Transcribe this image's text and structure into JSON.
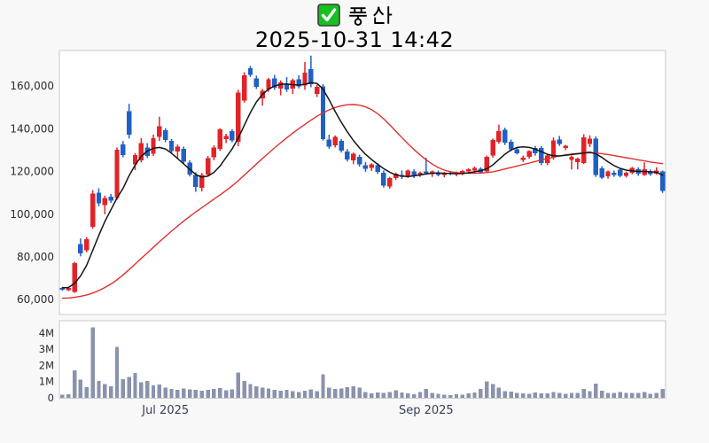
{
  "header": {
    "stock_name": "풍산",
    "checkbox_checked": true,
    "datetime": "2025-10-31 14:42"
  },
  "colors": {
    "up_candle": "#e12328",
    "down_candle": "#2060c4",
    "ma_short": "#151515",
    "ma_long": "#e03030",
    "volume_bar": "#8a92ad",
    "frame": "#cacaca",
    "panel_bg": "#ffffff",
    "background": "#f8f8f9",
    "axis_text": "#2b2b31",
    "xaxis_text": "#3a4156",
    "checkbox_green": "#16c11f",
    "checkbox_border": "#3c3c3c",
    "check_mark": "#ffffff"
  },
  "chart_data": {
    "type": "candlestick",
    "title": "풍산",
    "subtitle": "2025-10-31 14:42",
    "legend_position": "none",
    "grid": false,
    "price_axis": {
      "min": 60000,
      "max": 176600,
      "tick_values": [
        60000,
        80000,
        100000,
        120000,
        140000,
        160000
      ],
      "tick_labels": [
        "60,000",
        "80,000",
        "100,000",
        "120,000",
        "140,000",
        "160,000"
      ]
    },
    "volume_axis": {
      "min": 0,
      "max": 4800000,
      "tick_values": [
        0,
        1000000,
        2000000,
        3000000,
        4000000
      ],
      "tick_labels": [
        "0",
        "1M",
        "2M",
        "3M",
        "4M"
      ]
    },
    "x_axis": {
      "tick_indices": [
        17,
        60
      ],
      "tick_labels": [
        "Jul 2025",
        "Sep 2025"
      ]
    },
    "series": {
      "open": [
        65300,
        64400,
        63600,
        86000,
        83100,
        94100,
        110100,
        104100,
        108200,
        107600,
        132600,
        148200,
        123200,
        125200,
        131200,
        128200,
        136200,
        139200,
        134200,
        129200,
        130600,
        124200,
        118200,
        112200,
        118600,
        126600,
        130600,
        135200,
        138800,
        133800,
        153200,
        168400,
        163600,
        154200,
        158400,
        163600,
        158800,
        160800,
        158800,
        163200,
        160200,
        167800,
        156200,
        159800,
        134800,
        132200,
        134200,
        129200,
        125200,
        126800,
        122800,
        121600,
        122800,
        119400,
        112900,
        116900,
        118400,
        117900,
        119900,
        118400,
        119900,
        118900,
        119400,
        118200,
        119400,
        118700,
        119200,
        119900,
        120400,
        121200,
        119900,
        127400,
        133900,
        139400,
        133900,
        130400,
        125400,
        126900,
        130900,
        130900,
        123900,
        126400,
        134900,
        130900,
        125400,
        124400,
        123900,
        132900,
        135400,
        121400,
        117600,
        119400,
        120700,
        117900,
        119400,
        120900,
        118400,
        119900,
        118900,
        119900
      ],
      "high": [
        65900,
        66000,
        77600,
        88600,
        89200,
        111200,
        112100,
        108600,
        109400,
        131200,
        134200,
        151600,
        128600,
        135600,
        133200,
        137200,
        145600,
        140200,
        135200,
        132600,
        131600,
        125200,
        119600,
        119200,
        127200,
        132200,
        140200,
        137600,
        139800,
        158200,
        166400,
        169400,
        164800,
        158600,
        163800,
        165200,
        162600,
        164200,
        163400,
        165000,
        171200,
        174200,
        160600,
        160800,
        137200,
        136800,
        135200,
        130400,
        128800,
        127800,
        124400,
        123800,
        123800,
        120400,
        117400,
        119400,
        120400,
        120900,
        120900,
        119900,
        126400,
        120400,
        120400,
        119700,
        120200,
        119900,
        120700,
        121400,
        122200,
        121900,
        127400,
        135400,
        141900,
        140400,
        134900,
        131400,
        127400,
        129900,
        131900,
        131900,
        127900,
        135900,
        136600,
        132400,
        127400,
        126400,
        137400,
        136900,
        136400,
        122400,
        120400,
        120400,
        121400,
        119900,
        122100,
        121900,
        124200,
        120900,
        121900,
        120400
      ],
      "low": [
        64100,
        63900,
        63100,
        80200,
        82100,
        93100,
        103600,
        99900,
        105200,
        106600,
        126600,
        135400,
        120600,
        124200,
        126200,
        127200,
        134200,
        133600,
        128400,
        126200,
        123600,
        117600,
        110400,
        110600,
        117600,
        125200,
        129600,
        133200,
        133600,
        131800,
        152200,
        164200,
        158600,
        150800,
        157200,
        158200,
        155600,
        157200,
        156200,
        158800,
        158200,
        159400,
        154800,
        134400,
        130600,
        131200,
        128800,
        124600,
        123400,
        122200,
        119800,
        120200,
        118800,
        112400,
        111900,
        115900,
        116400,
        116900,
        116900,
        117400,
        118400,
        117400,
        117700,
        117200,
        118200,
        117700,
        118200,
        118900,
        119400,
        118900,
        119400,
        126400,
        132900,
        132400,
        129400,
        127900,
        124400,
        125900,
        127400,
        122900,
        122900,
        125400,
        131900,
        129900,
        120900,
        120900,
        123400,
        131400,
        117400,
        116400,
        116600,
        117400,
        117200,
        117100,
        118600,
        117900,
        117900,
        117900,
        118400,
        109900
      ],
      "close": [
        64600,
        65400,
        77100,
        81600,
        88300,
        109600,
        105100,
        107600,
        106200,
        130200,
        127600,
        137200,
        127600,
        133200,
        127200,
        135600,
        141200,
        134600,
        129600,
        131600,
        124600,
        118600,
        112600,
        118200,
        126200,
        131200,
        139600,
        136600,
        134400,
        156800,
        164900,
        165200,
        159600,
        157800,
        163200,
        159200,
        161600,
        158400,
        162600,
        159800,
        166200,
        160800,
        159600,
        135200,
        131600,
        136200,
        129800,
        125600,
        128200,
        123200,
        121200,
        123200,
        119800,
        113400,
        116900,
        118900,
        117400,
        120400,
        117900,
        119400,
        119200,
        119900,
        118400,
        119200,
        118900,
        119400,
        120200,
        120900,
        121700,
        119600,
        126900,
        134700,
        138900,
        133400,
        130400,
        128400,
        126400,
        129400,
        128400,
        123900,
        127400,
        134400,
        132900,
        131900,
        126900,
        125900,
        135900,
        135400,
        118400,
        117100,
        119900,
        118200,
        117900,
        119400,
        121600,
        118900,
        120900,
        118700,
        120400,
        110900
      ],
      "volume": [
        200000,
        220000,
        1700000,
        1120000,
        660000,
        4350000,
        1050000,
        840000,
        700000,
        3150000,
        1150000,
        1280000,
        1520000,
        950000,
        1050000,
        760000,
        820000,
        620000,
        550000,
        500000,
        580000,
        520000,
        480000,
        440000,
        500000,
        560000,
        600000,
        460000,
        520000,
        1550000,
        1050000,
        850000,
        700000,
        620000,
        580000,
        500000,
        440000,
        480000,
        420000,
        360000,
        450000,
        520000,
        400000,
        1450000,
        620000,
        550000,
        580000,
        660000,
        700000,
        640000,
        360000,
        280000,
        320000,
        300000,
        360000,
        460000,
        320000,
        280000,
        220000,
        360000,
        560000,
        300000,
        240000,
        200000,
        160000,
        220000,
        180000,
        260000,
        320000,
        550000,
        1000000,
        850000,
        620000,
        420000,
        380000,
        300000,
        280000,
        250000,
        320000,
        280000,
        260000,
        350000,
        300000,
        250000,
        300000,
        300000,
        550000,
        400000,
        880000,
        450000,
        300000,
        300000,
        350000,
        300000,
        300000,
        300000,
        350000,
        250000,
        300000,
        550000
      ],
      "ma_short": [
        65500,
        65600,
        67500,
        71000,
        76000,
        83000,
        90000,
        96500,
        102000,
        107500,
        112000,
        118000,
        123000,
        127000,
        129500,
        130800,
        131200,
        130500,
        128500,
        126000,
        123500,
        121000,
        118500,
        117300,
        117800,
        119500,
        122500,
        126500,
        130500,
        135500,
        141500,
        147500,
        152500,
        156000,
        158500,
        160000,
        160700,
        160900,
        160600,
        160400,
        160800,
        161500,
        161200,
        158500,
        153500,
        148000,
        143000,
        138500,
        134500,
        131000,
        128000,
        125500,
        123300,
        121300,
        119600,
        118400,
        117700,
        117600,
        117900,
        118300,
        118800,
        119100,
        119200,
        119100,
        119000,
        118900,
        119000,
        119300,
        119800,
        120300,
        121200,
        123000,
        125500,
        128000,
        130000,
        131200,
        131500,
        131200,
        130400,
        129200,
        128000,
        127300,
        127200,
        127500,
        127900,
        128200,
        128600,
        129000,
        128200,
        126500,
        124500,
        122700,
        121400,
        120600,
        120200,
        120000,
        119900,
        119800,
        119600,
        118200
      ],
      "ma_long": [
        60600,
        60700,
        61000,
        61500,
        62100,
        63000,
        64200,
        65600,
        67200,
        69200,
        71500,
        74000,
        76600,
        79200,
        81800,
        84400,
        87000,
        89500,
        92000,
        94400,
        96700,
        98900,
        101000,
        103000,
        105000,
        107000,
        109000,
        111000,
        113200,
        115600,
        118200,
        120800,
        123400,
        126000,
        128500,
        131000,
        133400,
        135700,
        137900,
        140000,
        142000,
        144000,
        145800,
        147400,
        148800,
        149900,
        150700,
        151200,
        151300,
        151000,
        150200,
        148900,
        147000,
        144600,
        141800,
        138800,
        135800,
        132900,
        130200,
        127700,
        125400,
        123400,
        121800,
        120600,
        119800,
        119400,
        119200,
        119100,
        119100,
        119200,
        119400,
        119800,
        120400,
        121100,
        121800,
        122500,
        123200,
        123900,
        124600,
        125300,
        126000,
        126600,
        127200,
        127700,
        128100,
        128400,
        128600,
        128700,
        128600,
        128300,
        127900,
        127400,
        126900,
        126400,
        125900,
        125400,
        124900,
        124400,
        124000,
        123600
      ]
    }
  }
}
